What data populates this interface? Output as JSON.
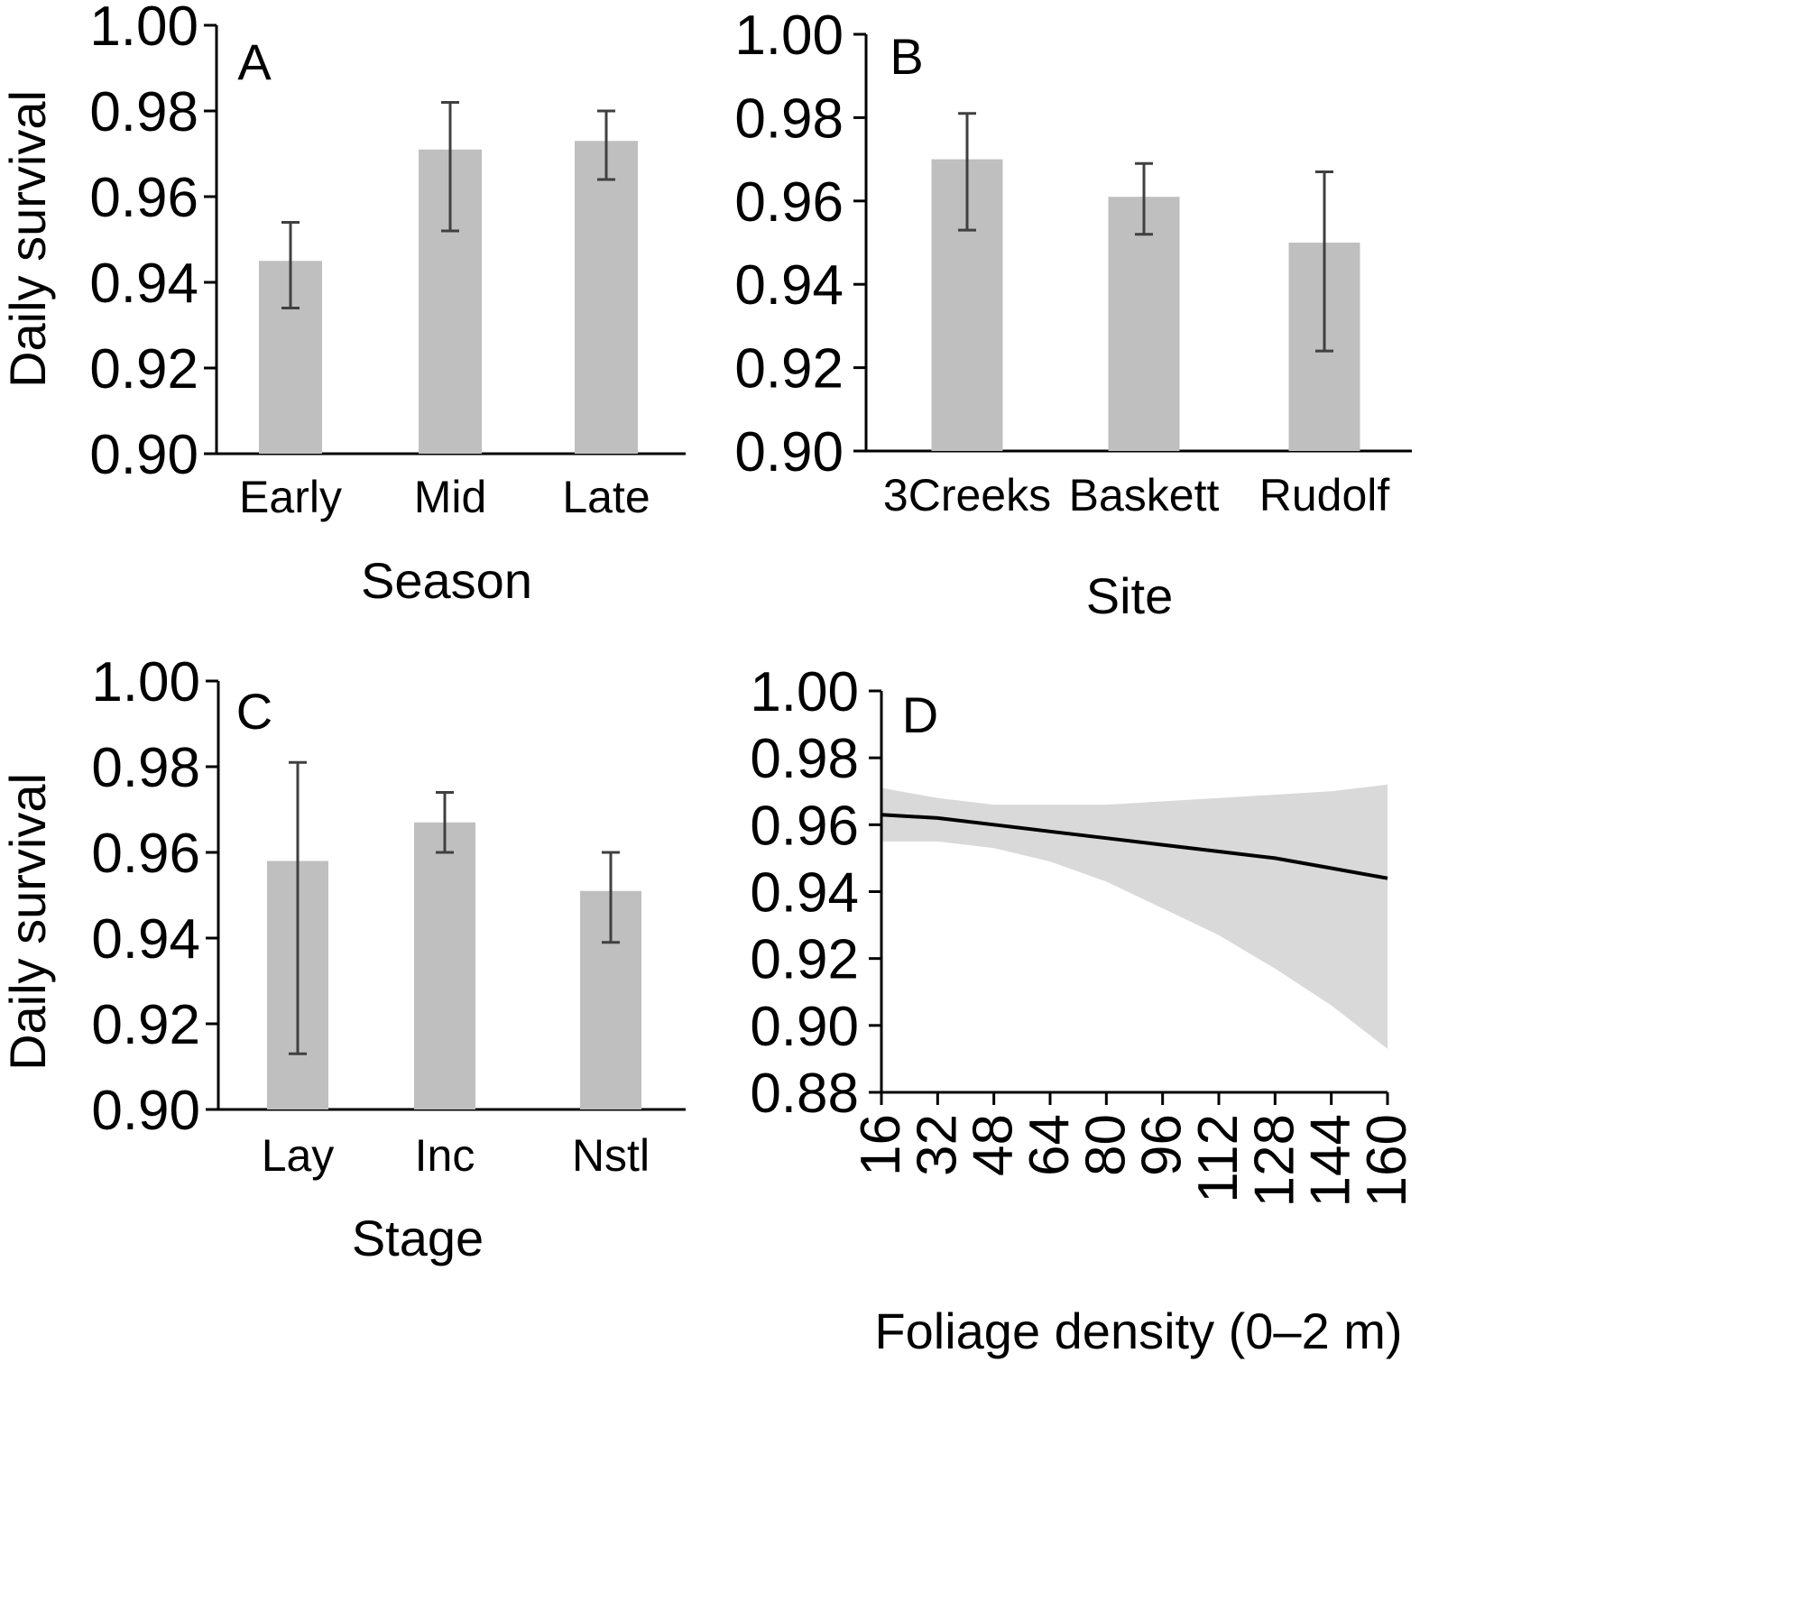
{
  "figure": {
    "panels": [
      "A",
      "B",
      "C",
      "D"
    ]
  },
  "chart_data": [
    {
      "panel": "A",
      "type": "bar",
      "panel_label": "A",
      "xlabel": "Season",
      "ylabel": "Daily survival",
      "categories": [
        "Early",
        "Mid",
        "Late"
      ],
      "values": [
        0.945,
        0.971,
        0.973
      ],
      "error_low": [
        0.934,
        0.952,
        0.964
      ],
      "error_high": [
        0.954,
        0.982,
        0.98
      ],
      "ylim": [
        0.9,
        1.0
      ],
      "yticks": [
        "0.90",
        "0.92",
        "0.94",
        "0.96",
        "0.98",
        "1.00"
      ],
      "grid": false
    },
    {
      "panel": "B",
      "type": "bar",
      "panel_label": "B",
      "xlabel": "Site",
      "ylabel": "",
      "categories": [
        "3Creeks",
        "Baskett",
        "Rudolf"
      ],
      "values": [
        0.97,
        0.961,
        0.95
      ],
      "error_low": [
        0.953,
        0.952,
        0.924
      ],
      "error_high": [
        0.981,
        0.969,
        0.967
      ],
      "ylim": [
        0.9,
        1.0
      ],
      "yticks": [
        "0.90",
        "0.92",
        "0.94",
        "0.96",
        "0.98",
        "1.00"
      ],
      "grid": false
    },
    {
      "panel": "C",
      "type": "bar",
      "panel_label": "C",
      "xlabel": "Stage",
      "ylabel": "Daily survival",
      "categories": [
        "Lay",
        "Inc",
        "Nstl"
      ],
      "values": [
        0.958,
        0.967,
        0.951
      ],
      "error_low": [
        0.913,
        0.96,
        0.939
      ],
      "error_high": [
        0.981,
        0.974,
        0.96
      ],
      "ylim": [
        0.9,
        1.0
      ],
      "yticks": [
        "0.90",
        "0.92",
        "0.94",
        "0.96",
        "0.98",
        "1.00"
      ],
      "grid": false
    },
    {
      "panel": "D",
      "type": "line",
      "panel_label": "D",
      "xlabel": "Foliage density (0–2 m)",
      "ylabel": "",
      "x": [
        16,
        32,
        48,
        64,
        80,
        96,
        112,
        128,
        144,
        160
      ],
      "series": [
        {
          "values": [
            0.963,
            0.962,
            0.96,
            0.958,
            0.956,
            0.954,
            0.952,
            0.95,
            0.947,
            0.944
          ]
        }
      ],
      "ci_low": [
        0.955,
        0.955,
        0.953,
        0.949,
        0.943,
        0.935,
        0.927,
        0.917,
        0.906,
        0.893
      ],
      "ci_high": [
        0.971,
        0.968,
        0.966,
        0.966,
        0.966,
        0.967,
        0.968,
        0.969,
        0.97,
        0.972
      ],
      "xlim": [
        16,
        160
      ],
      "ylim": [
        0.88,
        1.0
      ],
      "xticks": [
        "16",
        "32",
        "48",
        "64",
        "80",
        "96",
        "112",
        "128",
        "144",
        "160"
      ],
      "yticks": [
        "0.88",
        "0.90",
        "0.92",
        "0.94",
        "0.96",
        "0.98",
        "1.00"
      ],
      "grid": false
    }
  ]
}
